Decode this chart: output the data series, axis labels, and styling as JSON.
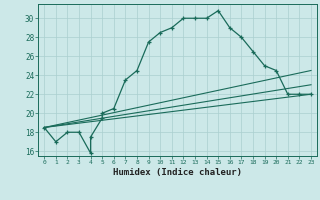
{
  "title": "",
  "xlabel": "Humidex (Indice chaleur)",
  "ylabel": "",
  "bg_color": "#cce8e8",
  "line_color": "#1a6b5a",
  "grid_color": "#aacfcf",
  "xlim": [
    -0.5,
    23.5
  ],
  "ylim": [
    15.5,
    31.5
  ],
  "xticks": [
    0,
    1,
    2,
    3,
    4,
    5,
    6,
    7,
    8,
    9,
    10,
    11,
    12,
    13,
    14,
    15,
    16,
    17,
    18,
    19,
    20,
    21,
    22,
    23
  ],
  "yticks": [
    16,
    18,
    20,
    22,
    24,
    26,
    28,
    30
  ],
  "main_series": [
    [
      0,
      18.5
    ],
    [
      1,
      17.0
    ],
    [
      2,
      18.0
    ],
    [
      3,
      18.0
    ],
    [
      4,
      15.8
    ],
    [
      4,
      17.5
    ],
    [
      5,
      19.5
    ],
    [
      5,
      20.0
    ],
    [
      6,
      20.5
    ],
    [
      7,
      23.5
    ],
    [
      8,
      24.5
    ],
    [
      9,
      27.5
    ],
    [
      10,
      28.5
    ],
    [
      11,
      29.0
    ],
    [
      12,
      30.0
    ],
    [
      13,
      30.0
    ],
    [
      14,
      30.0
    ],
    [
      15,
      30.8
    ],
    [
      16,
      29.0
    ],
    [
      17,
      28.0
    ],
    [
      18,
      26.5
    ],
    [
      19,
      25.0
    ],
    [
      20,
      24.5
    ],
    [
      21,
      22.0
    ],
    [
      22,
      22.0
    ],
    [
      23,
      22.0
    ]
  ],
  "linear_lines": [
    [
      [
        0,
        18.5
      ],
      [
        23,
        22.0
      ]
    ],
    [
      [
        0,
        18.5
      ],
      [
        23,
        23.0
      ]
    ],
    [
      [
        0,
        18.5
      ],
      [
        23,
        24.5
      ]
    ]
  ]
}
